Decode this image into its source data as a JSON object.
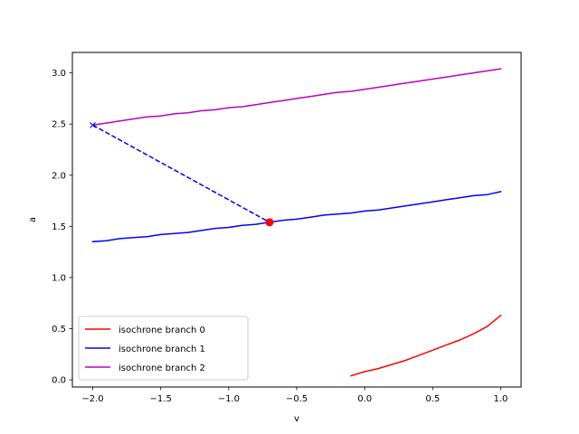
{
  "chart_data": {
    "type": "line",
    "xlabel": "v",
    "ylabel": "a",
    "xlim": [
      -2.15,
      1.15
    ],
    "ylim": [
      -0.07,
      3.2
    ],
    "xticks": [
      -2.0,
      -1.5,
      -1.0,
      -0.5,
      0.0,
      0.5,
      1.0
    ],
    "xtick_labels": [
      "−2.0",
      "−1.5",
      "−1.0",
      "−0.5",
      "0.0",
      "0.5",
      "1.0"
    ],
    "yticks": [
      0.0,
      0.5,
      1.0,
      1.5,
      2.0,
      2.5,
      3.0
    ],
    "ytick_labels": [
      "0.0",
      "0.5",
      "1.0",
      "1.5",
      "2.0",
      "2.5",
      "3.0"
    ],
    "grid": false,
    "legend_position": "lower-left",
    "series": [
      {
        "name": "isochrone branch 0",
        "color": "#ff0000",
        "x": [
          -0.1,
          0.0,
          0.1,
          0.2,
          0.3,
          0.4,
          0.5,
          0.6,
          0.7,
          0.8,
          0.9,
          1.0
        ],
        "y": [
          0.04,
          0.08,
          0.11,
          0.15,
          0.19,
          0.24,
          0.29,
          0.34,
          0.39,
          0.45,
          0.52,
          0.63
        ]
      },
      {
        "name": "isochrone branch 1",
        "color": "#0000ff",
        "x": [
          -2.0,
          -1.9,
          -1.8,
          -1.7,
          -1.6,
          -1.5,
          -1.4,
          -1.3,
          -1.2,
          -1.1,
          -1.0,
          -0.9,
          -0.8,
          -0.7,
          -0.6,
          -0.5,
          -0.4,
          -0.3,
          -0.2,
          -0.1,
          0.0,
          0.1,
          0.2,
          0.3,
          0.4,
          0.5,
          0.6,
          0.7,
          0.8,
          0.9,
          1.0
        ],
        "y": [
          1.35,
          1.36,
          1.38,
          1.39,
          1.4,
          1.42,
          1.43,
          1.44,
          1.46,
          1.48,
          1.49,
          1.51,
          1.52,
          1.54,
          1.56,
          1.57,
          1.59,
          1.61,
          1.62,
          1.63,
          1.65,
          1.66,
          1.68,
          1.7,
          1.72,
          1.74,
          1.76,
          1.78,
          1.8,
          1.81,
          1.84
        ]
      },
      {
        "name": "isochrone branch 2",
        "color": "#bf00bf",
        "x": [
          -2.0,
          -1.9,
          -1.8,
          -1.7,
          -1.6,
          -1.5,
          -1.4,
          -1.3,
          -1.2,
          -1.1,
          -1.0,
          -0.9,
          -0.8,
          -0.7,
          -0.6,
          -0.5,
          -0.4,
          -0.3,
          -0.2,
          -0.1,
          0.0,
          0.1,
          0.2,
          0.3,
          0.4,
          0.5,
          0.6,
          0.7,
          0.8,
          0.9,
          1.0
        ],
        "y": [
          2.49,
          2.51,
          2.53,
          2.55,
          2.57,
          2.58,
          2.6,
          2.61,
          2.63,
          2.64,
          2.66,
          2.67,
          2.69,
          2.71,
          2.73,
          2.75,
          2.77,
          2.79,
          2.81,
          2.82,
          2.84,
          2.86,
          2.88,
          2.9,
          2.92,
          2.94,
          2.96,
          2.98,
          3.0,
          3.02,
          3.04
        ]
      }
    ],
    "annotations": {
      "dashed_line": {
        "color": "#0000ff",
        "x": [
          -2.0,
          -0.7
        ],
        "y": [
          2.49,
          1.54
        ]
      },
      "start_marker": {
        "shape": "x",
        "color": "#0000ff",
        "x": -2.0,
        "y": 2.49
      },
      "end_marker": {
        "shape": "circle",
        "color": "#ff0000",
        "x": -0.7,
        "y": 1.54
      }
    }
  }
}
